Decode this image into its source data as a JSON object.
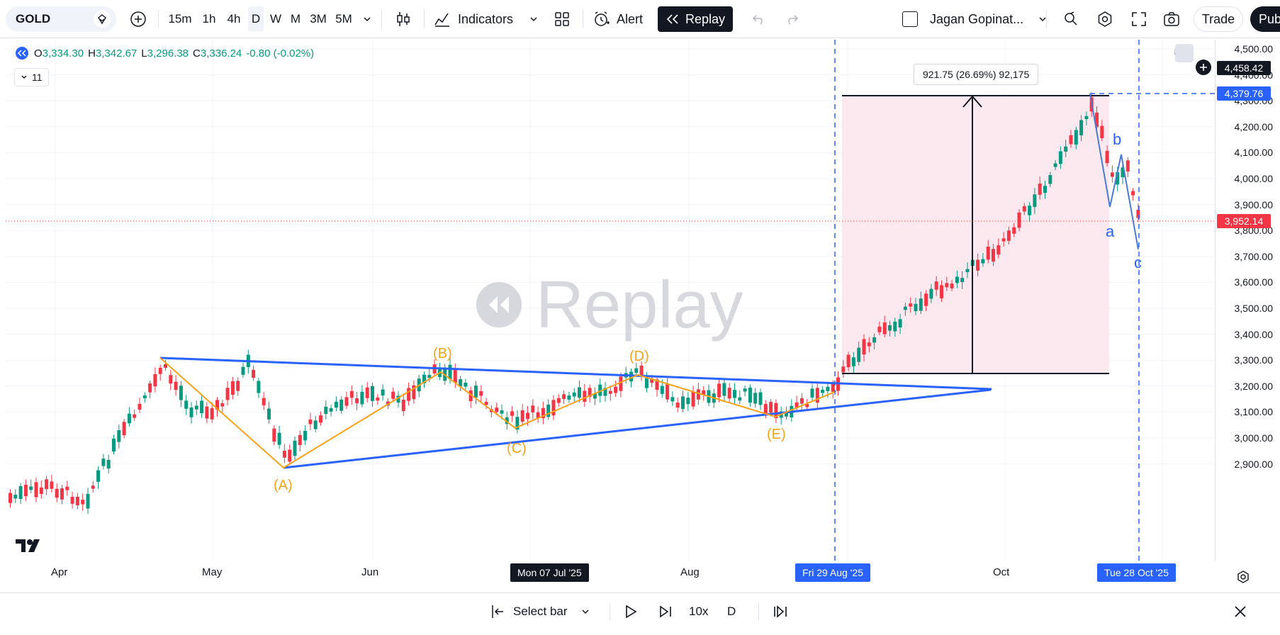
{
  "toolbar": {
    "symbol": "GOLD",
    "timeframes": [
      "15m",
      "1h",
      "4h",
      "D",
      "W",
      "M",
      "3M",
      "5M"
    ],
    "active_timeframe": "D",
    "indicators_label": "Indicators",
    "alert_label": "Alert",
    "replay_label": "Replay",
    "layout_name": "Jagan Gopinat...",
    "trade_label": "Trade",
    "publish_label": "Pub"
  },
  "legend": {
    "open_label": "O",
    "open": "3,334.30",
    "high_label": "H",
    "high": "3,342.67",
    "low_label": "L",
    "low": "3,296.38",
    "close_label": "C",
    "close": "3,336.24",
    "change": "-0.80 (-0.02%)",
    "indicator_count": "11"
  },
  "measure": {
    "text": "921.75 (26.69%) 92,175"
  },
  "watermark": "Replay",
  "price_scale": {
    "labels": [
      "4,500.00",
      "4,400.00",
      "4,300.00",
      "4,200.00",
      "4,100.00",
      "4,000.00",
      "3,900.00",
      "3,800.00",
      "3,700.00",
      "3,600.00",
      "3,500.00",
      "3,400.00",
      "3,300.00",
      "3,200.00",
      "3,100.00",
      "3,000.00",
      "2,900.00"
    ],
    "crosshair_price": "4,458.42",
    "line_price": "4,379.76",
    "last_price": "3,952.14"
  },
  "time_axis": {
    "labels": [
      "Apr",
      "May",
      "Jun",
      "Aug",
      "Oct"
    ],
    "cursor_date": "Mon 07 Jul '25",
    "range_start": "Fri 29 Aug '25",
    "range_end": "Tue 28 Oct '25"
  },
  "wave_labels": {
    "A": "(A)",
    "B": "(B)",
    "C": "(C)",
    "D": "(D)",
    "E": "(E)",
    "a": "a",
    "b": "b",
    "c": "c"
  },
  "replay_bar": {
    "select_bar": "Select bar",
    "speed": "10x",
    "interval": "D"
  },
  "colors": {
    "up": "#089981",
    "down": "#f23645",
    "orange": "#f7a21b",
    "blue": "#2962ff",
    "range_fill": "#fce4ec",
    "dark": "#131722"
  }
}
